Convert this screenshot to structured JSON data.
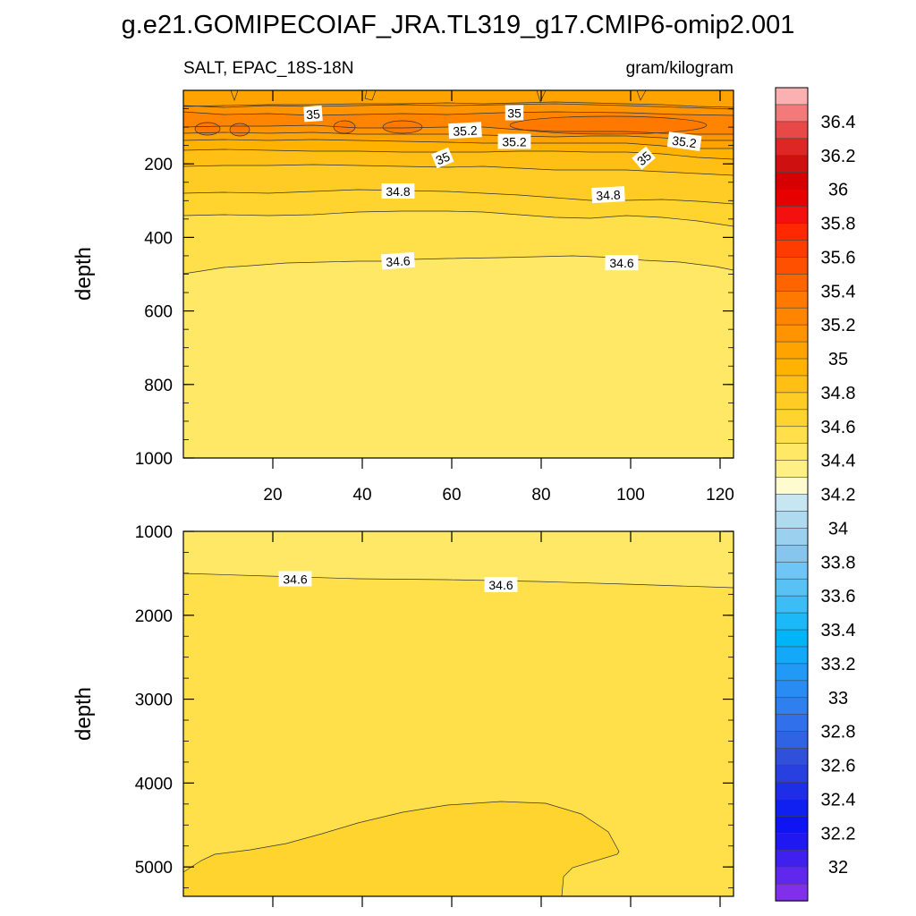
{
  "chart_data": {
    "type": "contour",
    "title": "g.e21.GOMIPECOIAF_JRA.TL319_g17.CMIP6-omip2.001",
    "left_string": "SALT, EPAC_18S-18N",
    "right_string": "gram/kilogram",
    "ylabel": "depth",
    "x_ticks": [
      20,
      40,
      60,
      80,
      100,
      120
    ],
    "xlim": [
      0,
      123
    ],
    "panels": [
      {
        "name": "upper",
        "ylim": [
          0,
          1000
        ],
        "y_ticks": [
          200,
          400,
          600,
          800,
          1000
        ],
        "contour_labels": [
          {
            "text": "35",
            "x": 29,
            "depth": 65,
            "angle": -4
          },
          {
            "text": "35",
            "x": 74,
            "depth": 62,
            "angle": 0
          },
          {
            "text": "35.2",
            "x": 63,
            "depth": 110,
            "angle": -3
          },
          {
            "text": "35.2",
            "x": 74,
            "depth": 140,
            "angle": 0
          },
          {
            "text": "35.2",
            "x": 112,
            "depth": 140,
            "angle": 8
          },
          {
            "text": "35",
            "x": 58,
            "depth": 185,
            "angle": -22
          },
          {
            "text": "35",
            "x": 103,
            "depth": 185,
            "angle": -40
          },
          {
            "text": "34.8",
            "x": 48,
            "depth": 275,
            "angle": 0
          },
          {
            "text": "34.8",
            "x": 95,
            "depth": 285,
            "angle": -3
          },
          {
            "text": "34.6",
            "x": 48,
            "depth": 465,
            "angle": -4
          },
          {
            "text": "34.6",
            "x": 98,
            "depth": 470,
            "angle": 0
          }
        ]
      },
      {
        "name": "lower",
        "ylim": [
          1000,
          5350
        ],
        "y_ticks": [
          1000,
          2000,
          3000,
          4000,
          5000
        ],
        "contour_labels": [
          {
            "text": "34.6",
            "x": 25,
            "depth": 1570,
            "angle": 0
          },
          {
            "text": "34.6",
            "x": 71,
            "depth": 1640,
            "angle": 0
          }
        ]
      }
    ],
    "colorbar": {
      "labels": [
        "36.4",
        "36.2",
        "36",
        "35.8",
        "35.6",
        "35.4",
        "35.2",
        "35",
        "34.8",
        "34.6",
        "34.4",
        "34.2",
        "34",
        "33.8",
        "33.6",
        "33.4",
        "33.2",
        "33",
        "32.8",
        "32.6",
        "32.4",
        "32.2",
        "32"
      ],
      "colors": [
        "#fbb1b1",
        "#f27a7a",
        "#e84848",
        "#de2626",
        "#cf1010",
        "#d70000",
        "#e60000",
        "#f51010",
        "#ff2800",
        "#ff3c00",
        "#ff5000",
        "#ff6400",
        "#ff7800",
        "#ff8400",
        "#ff9300",
        "#ffa300",
        "#ffb200",
        "#ffbf15",
        "#ffcb25",
        "#ffd42e",
        "#ffdf4a",
        "#ffe865",
        "#fff085",
        "#fffbd0",
        "#c6e6f2",
        "#b0daef",
        "#9bd0ef",
        "#85c5ee",
        "#6fc6f6",
        "#58c2f5",
        "#3bbef6",
        "#1cb8f8",
        "#00b4f8",
        "#14a8f8",
        "#209af6",
        "#288cf2",
        "#2e80ee",
        "#3070ea",
        "#3062e4",
        "#3050dc",
        "#2840e0",
        "#1e2ee6",
        "#1020f0",
        "#0e14f4",
        "#2018f0",
        "#4020ee",
        "#6028ec",
        "#8030ea"
      ]
    }
  }
}
